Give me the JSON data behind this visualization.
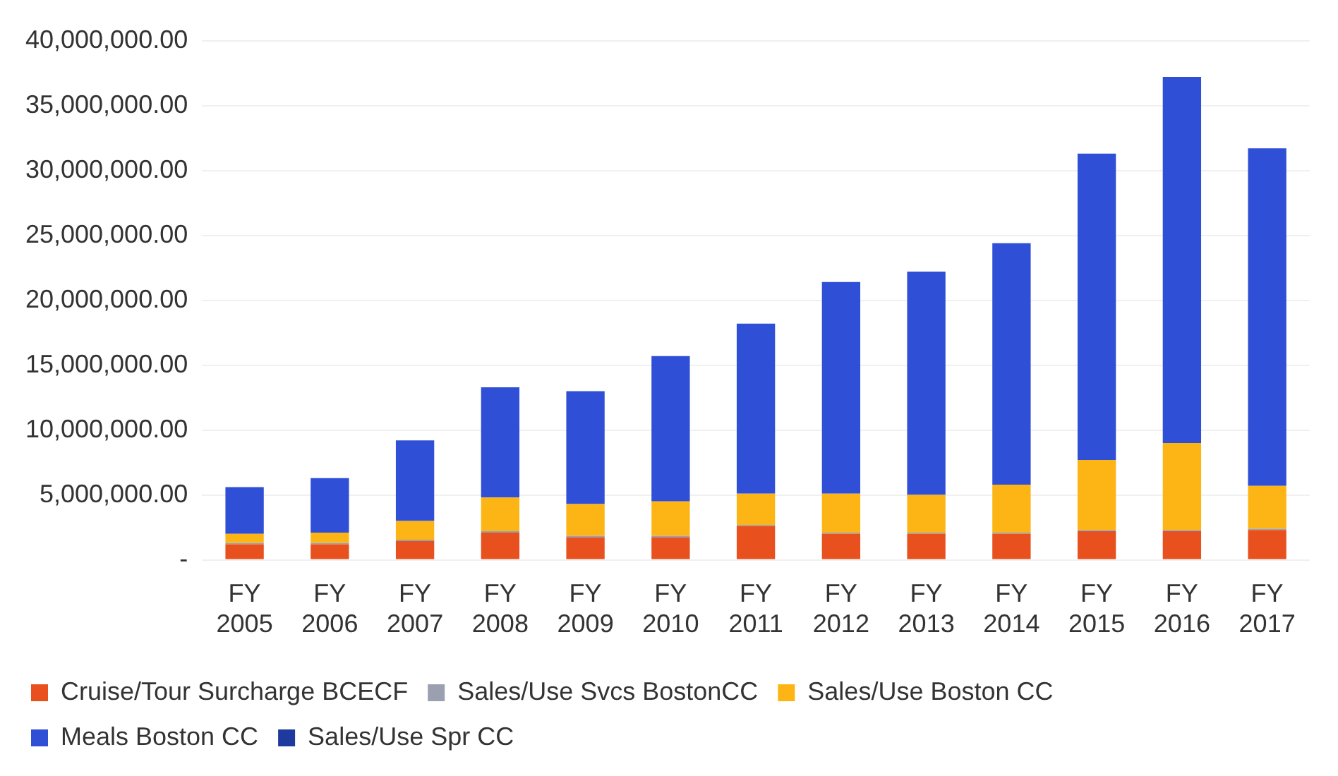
{
  "chart_data": {
    "type": "bar",
    "stacked": true,
    "categories": [
      "FY 2005",
      "FY 2006",
      "FY 2007",
      "FY 2008",
      "FY 2009",
      "FY 2010",
      "FY 2011",
      "FY 2012",
      "FY 2013",
      "FY 2014",
      "FY 2015",
      "FY 2016",
      "FY 2017"
    ],
    "series": [
      {
        "name": "Cruise/Tour Surcharge BCECF",
        "color": "#e8501e",
        "values": [
          1200000,
          1200000,
          1450000,
          2100000,
          1750000,
          1750000,
          2600000,
          2000000,
          2000000,
          2000000,
          2200000,
          2200000,
          2300000
        ]
      },
      {
        "name": "Sales/Use Svcs BostonCC",
        "color": "#9aa0b0",
        "values": [
          100000,
          100000,
          100000,
          100000,
          100000,
          100000,
          100000,
          100000,
          100000,
          100000,
          100000,
          100000,
          100000
        ]
      },
      {
        "name": "Sales/Use Boston CC",
        "color": "#fdb515",
        "values": [
          700000,
          800000,
          1450000,
          2600000,
          2450000,
          2650000,
          2400000,
          3000000,
          2900000,
          3700000,
          5400000,
          6700000,
          3300000
        ]
      },
      {
        "name": "Meals Boston CC",
        "color": "#2f4fd6",
        "values": [
          3600000,
          4200000,
          6200000,
          8500000,
          8700000,
          11200000,
          13100000,
          16300000,
          17200000,
          18600000,
          23600000,
          28200000,
          26000000
        ]
      },
      {
        "name": "Sales/Use Spr CC",
        "color": "#1f3a9e",
        "values": [
          0,
          0,
          0,
          0,
          0,
          0,
          0,
          0,
          0,
          0,
          0,
          0,
          0
        ]
      }
    ],
    "ylim": [
      0,
      40000000
    ],
    "yticks": [
      {
        "value": 0,
        "label": "-"
      },
      {
        "value": 5000000,
        "label": "5,000,000.00"
      },
      {
        "value": 10000000,
        "label": "10,000,000.00"
      },
      {
        "value": 15000000,
        "label": "15,000,000.00"
      },
      {
        "value": 20000000,
        "label": "20,000,000.00"
      },
      {
        "value": 25000000,
        "label": "25,000,000.00"
      },
      {
        "value": 30000000,
        "label": "30,000,000.00"
      },
      {
        "value": 35000000,
        "label": "35,000,000.00"
      },
      {
        "value": 40000000,
        "label": "40,000,000.00"
      }
    ],
    "grid": "y",
    "legend": "bottom"
  }
}
